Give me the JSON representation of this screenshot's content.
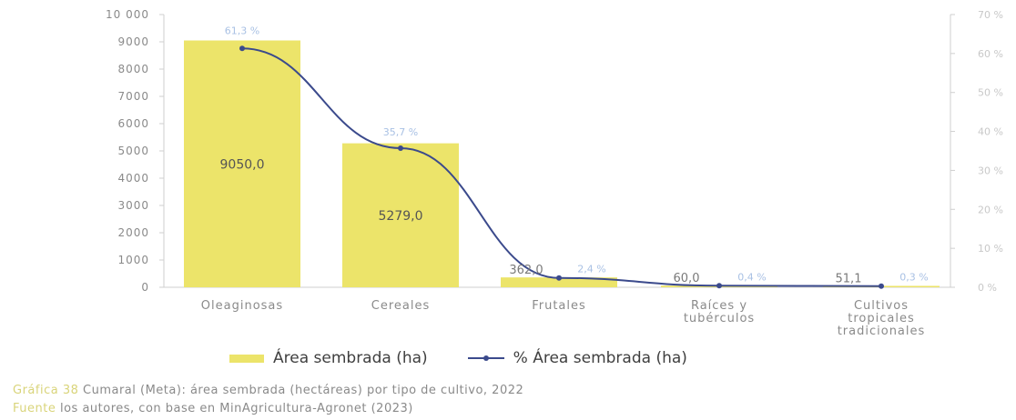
{
  "chart_data": {
    "type": "bar",
    "categories": [
      [
        "Oleaginosas"
      ],
      [
        "Cereales"
      ],
      [
        "Frutales"
      ],
      [
        "Raíces y",
        "tubérculos"
      ],
      [
        "Cultivos",
        "tropicales",
        "tradicionales"
      ]
    ],
    "series": [
      {
        "name": "Área sembrada (ha)",
        "type": "bar",
        "values": [
          9050.0,
          5279.0,
          362.0,
          60.0,
          51.1
        ],
        "labels": [
          "9050,0",
          "5279,0",
          "362,0",
          "60,0",
          "51,1"
        ]
      },
      {
        "name": "% Área sembrada (ha)",
        "type": "line",
        "axis": "right",
        "values": [
          61.3,
          35.7,
          2.4,
          0.4,
          0.3
        ],
        "labels": [
          "61,3 %",
          "35,7 %",
          "2,4 %",
          "0,4 %",
          "0,3 %"
        ]
      }
    ],
    "y_left": {
      "min": 0,
      "max": 10000,
      "ticks": [
        0,
        1000,
        2000,
        3000,
        4000,
        5000,
        6000,
        7000,
        8000,
        9000,
        10000
      ],
      "tick_labels": [
        "0",
        "1000",
        "2000",
        "3000",
        "4000",
        "5000",
        "6000",
        "7000",
        "8000",
        "9000",
        "10 000"
      ]
    },
    "y_right": {
      "min": 0,
      "max": 70,
      "ticks": [
        0,
        10,
        20,
        30,
        40,
        50,
        60,
        70
      ],
      "tick_labels": [
        "0 %",
        "10 %",
        "20 %",
        "30 %",
        "40 %",
        "50 %",
        "60 %",
        "70 %"
      ]
    },
    "colors": {
      "bar": "#ece46a",
      "line": "#3b4a8c"
    },
    "grid": false,
    "legend": "bottom"
  },
  "caption": {
    "prefix": "Gráfica 38",
    "text": "Cumaral (Meta): área sembrada (hectáreas) por tipo de cultivo, 2022"
  },
  "source": {
    "prefix": "Fuente",
    "text": "los autores, con base en MinAgricultura-Agronet (2023)"
  }
}
